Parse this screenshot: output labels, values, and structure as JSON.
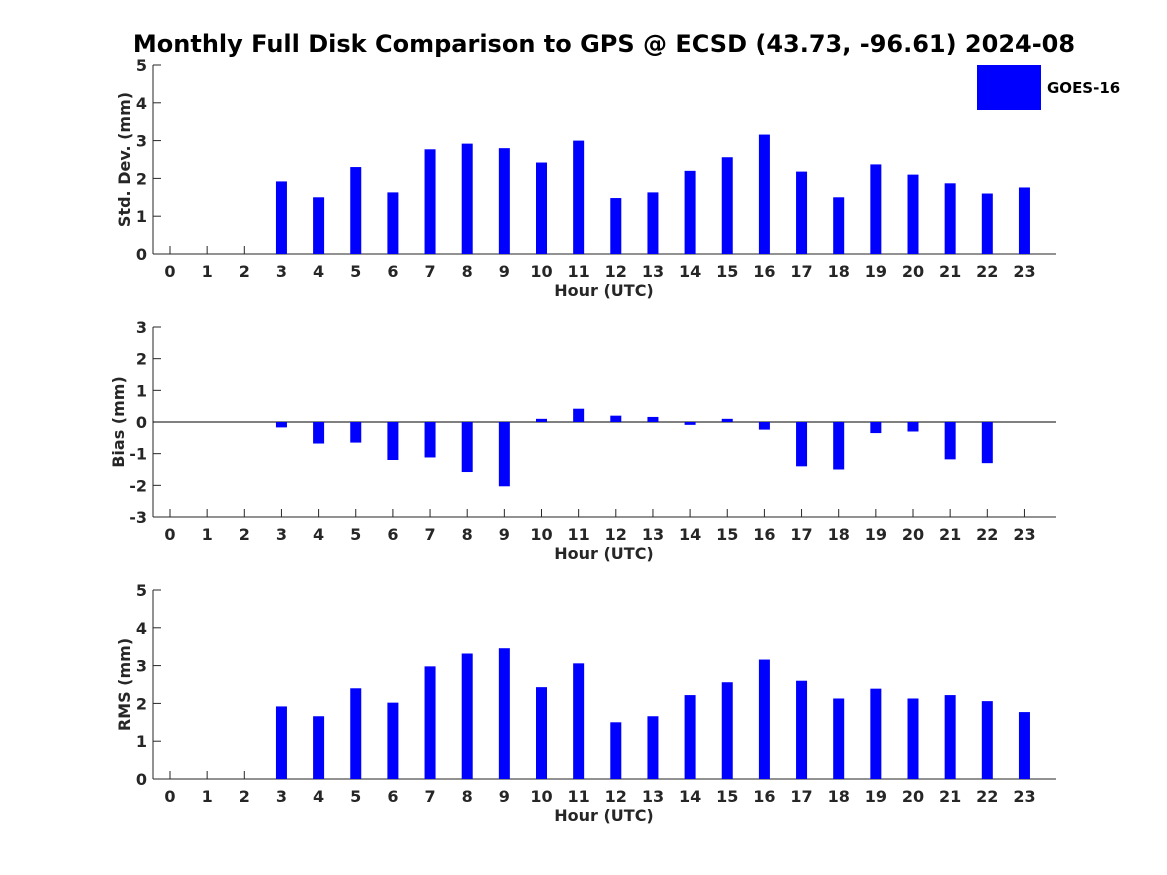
{
  "title": "Monthly Full Disk Comparison to GPS @ ECSD (43.73, -96.61) 2024-08",
  "colors": {
    "bar": "#0000ff",
    "axis": "#262626"
  },
  "chart_data": [
    {
      "type": "bar",
      "ylabel": "Std. Dev. (mm)",
      "xlabel": "Hour (UTC)",
      "ylim": [
        0,
        5
      ],
      "yticks": [
        "0",
        "1",
        "2",
        "3",
        "4",
        "5"
      ],
      "categories": [
        "0",
        "1",
        "2",
        "3",
        "4",
        "5",
        "6",
        "7",
        "8",
        "9",
        "10",
        "11",
        "12",
        "13",
        "14",
        "15",
        "16",
        "17",
        "18",
        "19",
        "20",
        "21",
        "22",
        "23"
      ],
      "series": [
        {
          "name": "GOES-16",
          "values": [
            null,
            null,
            null,
            1.92,
            1.5,
            2.3,
            1.63,
            2.77,
            2.92,
            2.8,
            2.42,
            3.0,
            1.48,
            1.63,
            2.2,
            2.56,
            3.16,
            2.18,
            1.5,
            2.37,
            2.1,
            1.87,
            1.6,
            1.76
          ]
        }
      ],
      "legend": {
        "label": "GOES-16",
        "position": "top-right"
      }
    },
    {
      "type": "bar",
      "ylabel": "Bias (mm)",
      "xlabel": "Hour (UTC)",
      "ylim": [
        -3,
        3
      ],
      "yticks": [
        "-3",
        "-2",
        "-1",
        "0",
        "1",
        "2",
        "3"
      ],
      "categories": [
        "0",
        "1",
        "2",
        "3",
        "4",
        "5",
        "6",
        "7",
        "8",
        "9",
        "10",
        "11",
        "12",
        "13",
        "14",
        "15",
        "16",
        "17",
        "18",
        "19",
        "20",
        "21",
        "22",
        "23"
      ],
      "series": [
        {
          "name": "GOES-16",
          "values": [
            null,
            null,
            null,
            -0.17,
            -0.68,
            -0.65,
            -1.2,
            -1.12,
            -1.58,
            -2.03,
            0.1,
            0.42,
            0.2,
            0.16,
            -0.09,
            0.1,
            -0.24,
            -1.4,
            -1.5,
            -0.35,
            -0.3,
            -1.18,
            -1.3,
            null
          ]
        }
      ]
    },
    {
      "type": "bar",
      "ylabel": "RMS (mm)",
      "xlabel": "Hour (UTC)",
      "ylim": [
        0,
        5
      ],
      "yticks": [
        "0",
        "1",
        "2",
        "3",
        "4",
        "5"
      ],
      "categories": [
        "0",
        "1",
        "2",
        "3",
        "4",
        "5",
        "6",
        "7",
        "8",
        "9",
        "10",
        "11",
        "12",
        "13",
        "14",
        "15",
        "16",
        "17",
        "18",
        "19",
        "20",
        "21",
        "22",
        "23"
      ],
      "series": [
        {
          "name": "GOES-16",
          "values": [
            null,
            null,
            null,
            1.92,
            1.66,
            2.4,
            2.02,
            2.98,
            3.32,
            3.46,
            2.43,
            3.06,
            1.5,
            1.66,
            2.22,
            2.56,
            3.16,
            2.6,
            2.13,
            2.39,
            2.13,
            2.22,
            2.06,
            1.77
          ]
        }
      ]
    }
  ]
}
